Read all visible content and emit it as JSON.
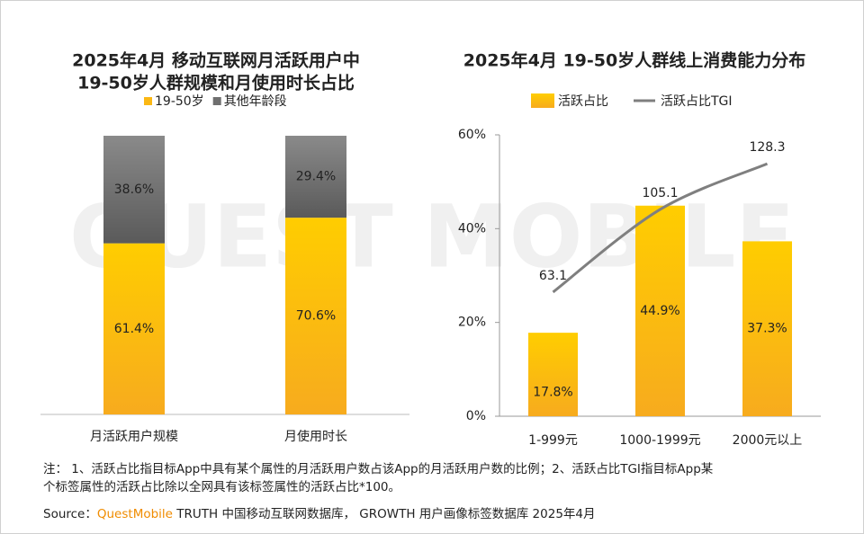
{
  "watermark": "QUEST MOBILE",
  "chart_data": [
    {
      "type": "stacked_bar",
      "title": [
        "2025年4月 移动互联网月活跃用户中",
        "19-50岁人群规模和月使用时长占比"
      ],
      "categories": [
        "月活跃用户规模",
        "月使用时长"
      ],
      "series": [
        {
          "name": "19-50岁",
          "color": "#fbb814",
          "values": [
            61.4,
            70.6
          ],
          "value_labels": [
            "61.4%",
            "70.6%"
          ]
        },
        {
          "name": "其他年龄段",
          "color": "#6f6f6f",
          "values": [
            38.6,
            29.4
          ],
          "value_labels": [
            "38.6%",
            "29.4%"
          ]
        }
      ],
      "legend": "top"
    },
    {
      "type": "bar_line",
      "title": "2025年4月 19-50岁人群线上消费能力分布",
      "categories": [
        "1-999元",
        "1000-1999元",
        "2000元以上"
      ],
      "series": [
        {
          "name": "活跃占比",
          "type": "bar",
          "color": "#fbb814",
          "values": [
            17.8,
            44.9,
            37.3
          ],
          "value_labels": [
            "17.8%",
            "44.9%",
            "37.3%"
          ]
        },
        {
          "name": "活跃占比TGI",
          "type": "line",
          "axis": "y2",
          "color": "#7f7f7f",
          "values": [
            63.1,
            105.1,
            128.3
          ]
        }
      ],
      "ylim": [
        0,
        60
      ],
      "yticks": [
        {
          "value": 0,
          "label": "0%"
        },
        {
          "value": 20,
          "label": "20%"
        },
        {
          "value": 40,
          "label": "40%"
        },
        {
          "value": 60,
          "label": "60%"
        }
      ],
      "y2lim": [
        0,
        143
      ],
      "legend": "top"
    }
  ],
  "note": [
    "注： 1、活跃占比指目标App中具有某个属性的月活跃用户数占该App的月活跃用户数的比例；2、活跃占比TGI指目标App某",
    "个标签属性的活跃占比除以全网具有该标签属性的活跃占比*100。"
  ],
  "source": {
    "prefix": "Source：",
    "brand": "QuestMobile",
    "text": " TRUTH 中国移动互联网数据库，  GROWTH 用户画像标签数据库 2025年4月"
  }
}
